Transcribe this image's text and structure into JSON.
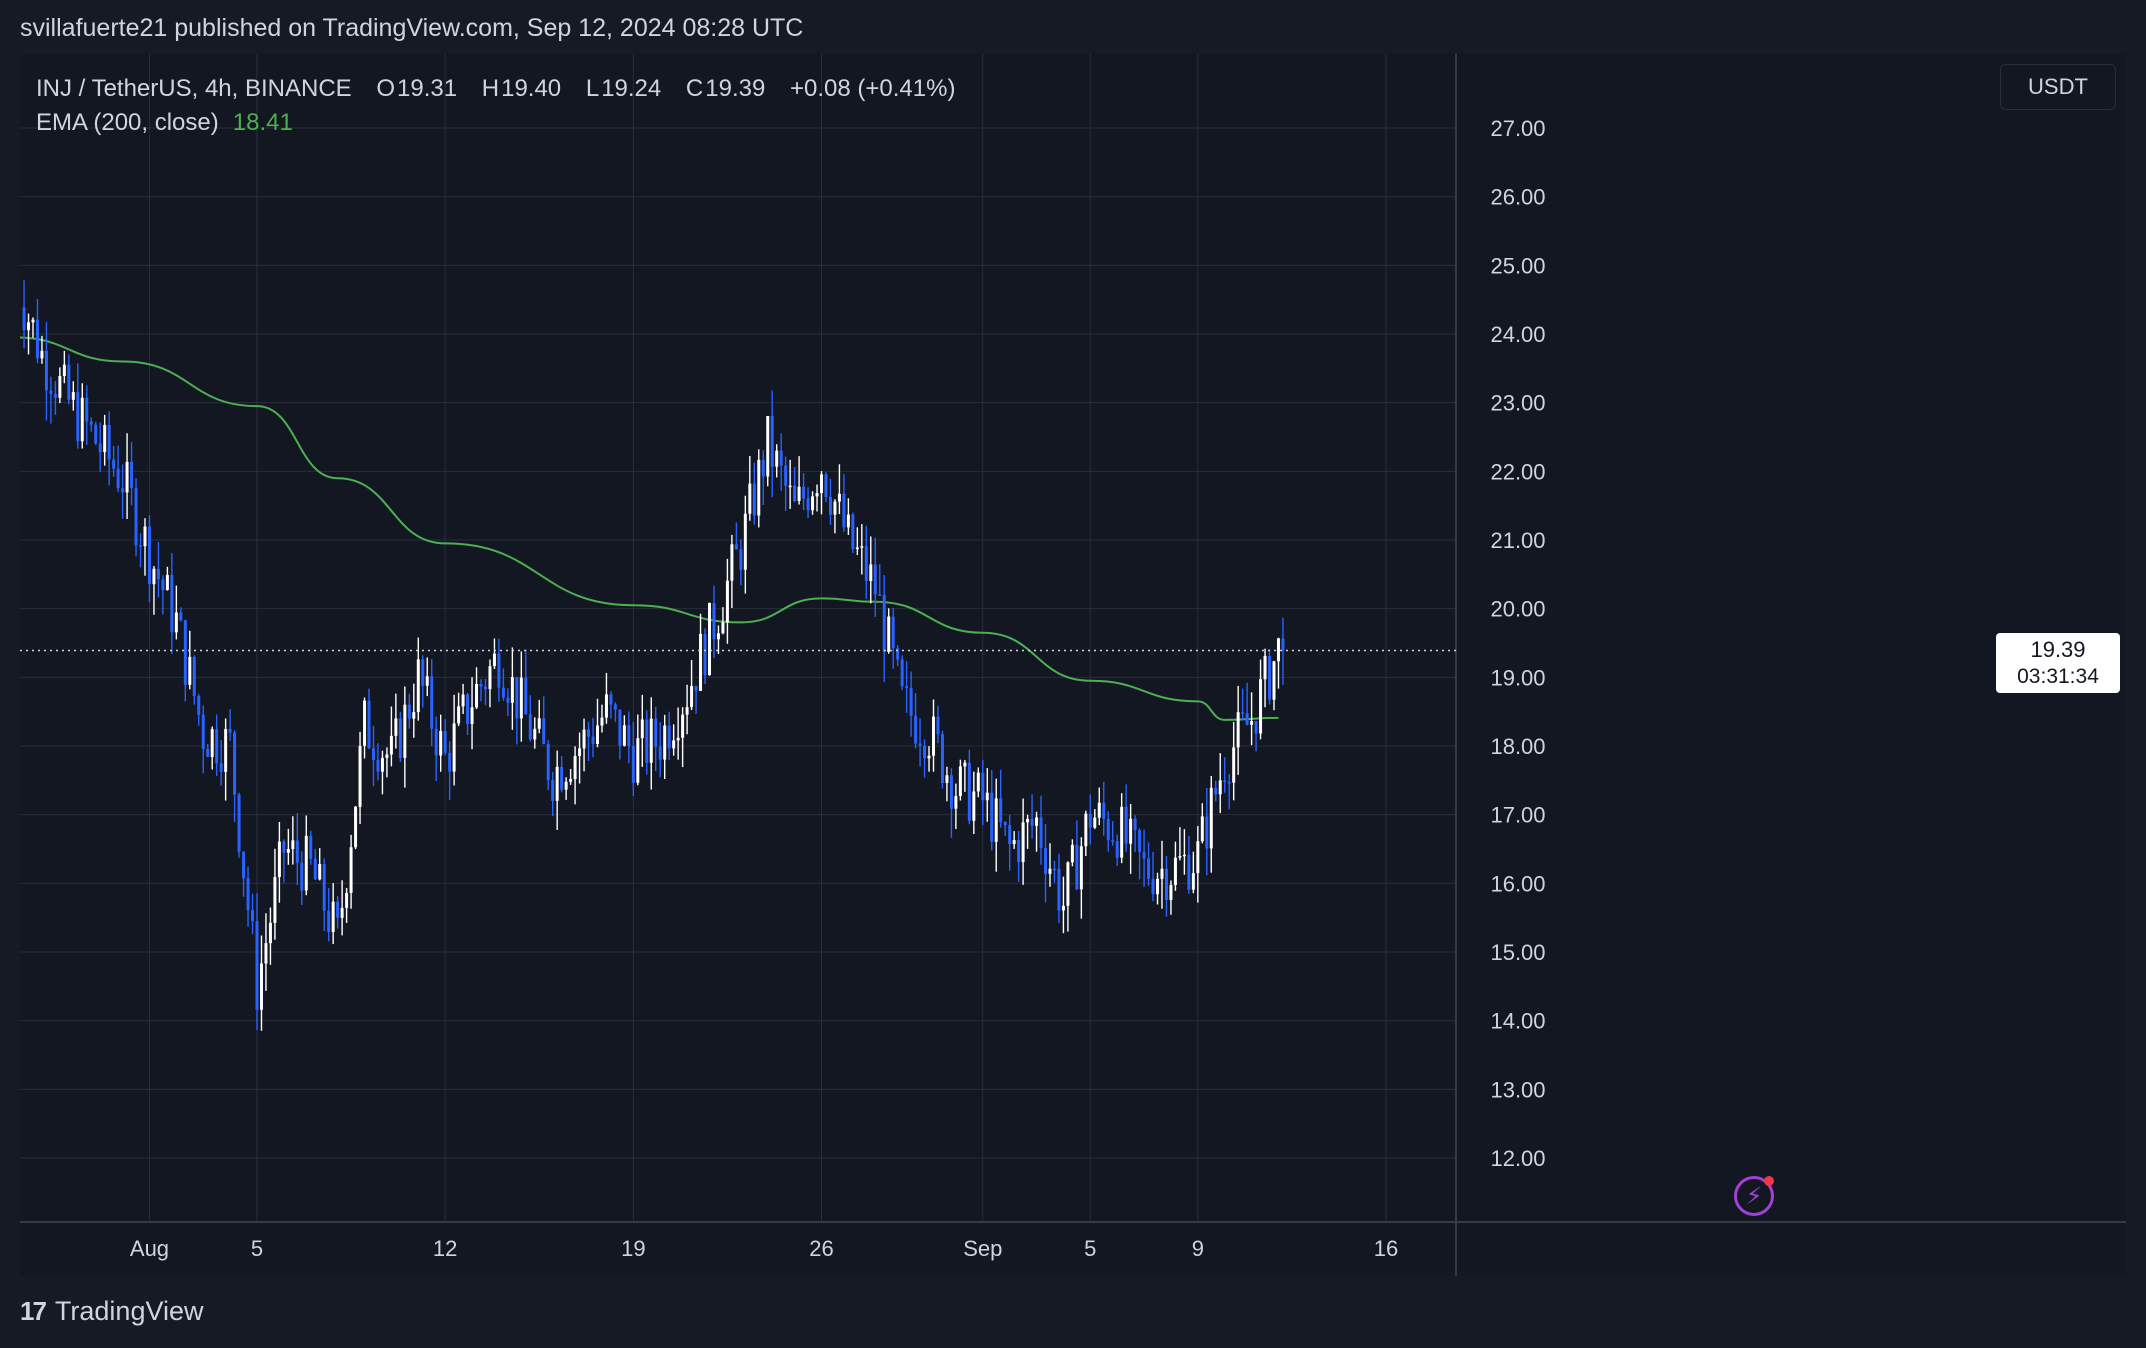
{
  "header": {
    "published": "svillafuerte21 published on TradingView.com, Sep 12, 2024 08:28 UTC"
  },
  "legend": {
    "symbol": "INJ / TetherUS, 4h, BINANCE",
    "o_label": "O",
    "o": "19.31",
    "h_label": "H",
    "h": "19.40",
    "l_label": "L",
    "l": "19.24",
    "c_label": "C",
    "c": "19.39",
    "change": "+0.08 (+0.41%)",
    "ema_label": "EMA (200, close)",
    "ema_value": "18.41"
  },
  "currency": "USDT",
  "last_price": {
    "value": "19.39",
    "countdown": "03:31:34"
  },
  "footer": {
    "brand": "TradingView"
  },
  "colors": {
    "background": "#131722",
    "grid": "#2a2e39",
    "up": "#ffffff",
    "down": "#2962ff",
    "ema": "#4caf50",
    "text": "#d1d4dc"
  },
  "icons": {
    "alert": "lightning-icon",
    "logo": "tradingview-logo-icon"
  },
  "chart_data": {
    "type": "candlestick",
    "timeframe": "4h",
    "x_range": [
      "2024-07-29",
      "2024-09-18"
    ],
    "ylim": [
      11.0,
      27.5
    ],
    "y_ticks": [
      "12.00",
      "13.00",
      "14.00",
      "15.00",
      "16.00",
      "17.00",
      "18.00",
      "19.00",
      "20.00",
      "21.00",
      "22.00",
      "23.00",
      "24.00",
      "25.00",
      "26.00",
      "27.00"
    ],
    "x_ticks": [
      {
        "label": "Aug",
        "date": "2024-08-01"
      },
      {
        "label": "5",
        "date": "2024-08-05"
      },
      {
        "label": "12",
        "date": "2024-08-12"
      },
      {
        "label": "19",
        "date": "2024-08-19"
      },
      {
        "label": "26",
        "date": "2024-08-26"
      },
      {
        "label": "Sep",
        "date": "2024-09-01"
      },
      {
        "label": "5",
        "date": "2024-09-05"
      },
      {
        "label": "9",
        "date": "2024-09-09"
      },
      {
        "label": "16",
        "date": "2024-09-16"
      }
    ],
    "grid": true,
    "last_price_line": 19.39,
    "close_path": [
      {
        "date": "2024-07-27",
        "close": 24.8
      },
      {
        "date": "2024-07-28",
        "close": 23.7
      },
      {
        "date": "2024-07-29",
        "close": 23.0
      },
      {
        "date": "2024-07-31",
        "close": 21.9
      },
      {
        "date": "2024-08-01",
        "close": 20.8
      },
      {
        "date": "2024-08-02",
        "close": 19.8
      },
      {
        "date": "2024-08-03",
        "close": 18.2
      },
      {
        "date": "2024-08-04",
        "close": 18.0
      },
      {
        "date": "2024-08-05",
        "close": 14.5
      },
      {
        "date": "2024-08-06",
        "close": 16.5
      },
      {
        "date": "2024-08-07",
        "close": 16.2
      },
      {
        "date": "2024-08-08",
        "close": 15.2
      },
      {
        "date": "2024-08-09",
        "close": 18.3
      },
      {
        "date": "2024-08-10",
        "close": 17.8
      },
      {
        "date": "2024-08-11",
        "close": 19.0
      },
      {
        "date": "2024-08-12",
        "close": 17.8
      },
      {
        "date": "2024-08-13",
        "close": 18.7
      },
      {
        "date": "2024-08-14",
        "close": 19.3
      },
      {
        "date": "2024-08-15",
        "close": 18.4
      },
      {
        "date": "2024-08-16",
        "close": 17.6
      },
      {
        "date": "2024-08-17",
        "close": 18.0
      },
      {
        "date": "2024-08-18",
        "close": 18.5
      },
      {
        "date": "2024-08-19",
        "close": 17.9
      },
      {
        "date": "2024-08-20",
        "close": 18.1
      },
      {
        "date": "2024-08-21",
        "close": 18.8
      },
      {
        "date": "2024-08-22",
        "close": 19.8
      },
      {
        "date": "2024-08-23",
        "close": 20.9
      },
      {
        "date": "2024-08-24",
        "close": 22.4
      },
      {
        "date": "2024-08-25",
        "close": 21.4
      },
      {
        "date": "2024-08-26",
        "close": 22.1
      },
      {
        "date": "2024-08-27",
        "close": 21.0
      },
      {
        "date": "2024-08-28",
        "close": 20.3
      },
      {
        "date": "2024-08-29",
        "close": 18.6
      },
      {
        "date": "2024-08-30",
        "close": 18.2
      },
      {
        "date": "2024-08-31",
        "close": 17.4
      },
      {
        "date": "2024-09-01",
        "close": 17.2
      },
      {
        "date": "2024-09-02",
        "close": 16.5
      },
      {
        "date": "2024-09-03",
        "close": 16.9
      },
      {
        "date": "2024-09-04",
        "close": 15.7
      },
      {
        "date": "2024-09-05",
        "close": 17.0
      },
      {
        "date": "2024-09-06",
        "close": 16.8
      },
      {
        "date": "2024-09-07",
        "close": 16.2
      },
      {
        "date": "2024-09-08",
        "close": 16.2
      },
      {
        "date": "2024-09-09",
        "close": 16.4
      },
      {
        "date": "2024-09-10",
        "close": 17.8
      },
      {
        "date": "2024-09-11",
        "close": 18.4
      },
      {
        "date": "2024-09-12",
        "close": 19.39
      }
    ],
    "ema_series": {
      "name": "EMA (200, close)",
      "points": [
        {
          "date": "2024-07-27",
          "value": 23.95
        },
        {
          "date": "2024-07-31",
          "value": 23.6
        },
        {
          "date": "2024-08-05",
          "value": 22.95
        },
        {
          "date": "2024-08-08",
          "value": 21.9
        },
        {
          "date": "2024-08-12",
          "value": 20.95
        },
        {
          "date": "2024-08-19",
          "value": 20.05
        },
        {
          "date": "2024-08-23",
          "value": 19.8
        },
        {
          "date": "2024-08-26",
          "value": 20.15
        },
        {
          "date": "2024-08-28",
          "value": 20.1
        },
        {
          "date": "2024-09-01",
          "value": 19.65
        },
        {
          "date": "2024-09-05",
          "value": 18.95
        },
        {
          "date": "2024-09-09",
          "value": 18.65
        },
        {
          "date": "2024-09-10",
          "value": 18.38
        },
        {
          "date": "2024-09-12",
          "value": 18.41
        }
      ]
    }
  }
}
